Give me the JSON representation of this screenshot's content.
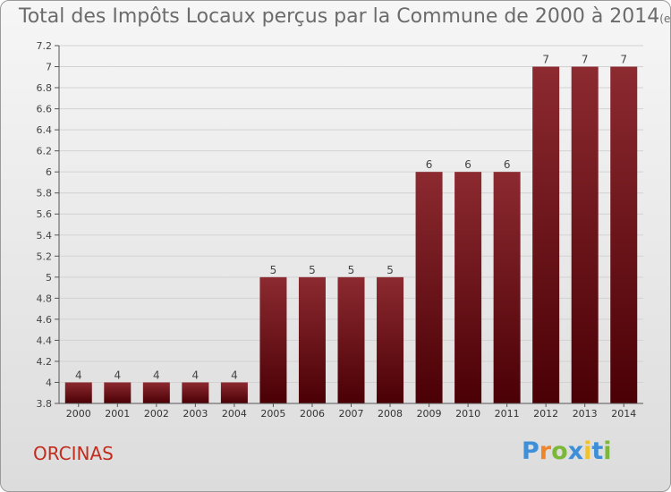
{
  "title": "Total des Impôts Locaux perçus par la Commune de 2000 à 2014",
  "subtitle": "(en milliers d'€)",
  "commune": "ORCINAS",
  "logo": {
    "text": "Proxiti",
    "letters": [
      "P",
      "r",
      "o",
      "x",
      "i",
      "t",
      "i"
    ],
    "colors": [
      "#3f8fd8",
      "#f0842a",
      "#7bb83a",
      "#3f8fd8",
      "#f0c22c",
      "#3f8fd8",
      "#7bb83a"
    ]
  },
  "colors": {
    "bar": "#6e0f14",
    "bar_light": "#8c2a30",
    "text": "#6b6b6b",
    "commune": "#c22c1d"
  },
  "chart_data": {
    "type": "bar",
    "categories": [
      "2000",
      "2001",
      "2002",
      "2003",
      "2004",
      "2005",
      "2006",
      "2007",
      "2008",
      "2009",
      "2010",
      "2011",
      "2012",
      "2013",
      "2014"
    ],
    "values": [
      4,
      4,
      4,
      4,
      4,
      5,
      5,
      5,
      5,
      6,
      6,
      6,
      7,
      7,
      7
    ],
    "labels": [
      "4",
      "4",
      "4",
      "4",
      "4",
      "5",
      "5",
      "5",
      "5",
      "6",
      "6",
      "6",
      "7",
      "7",
      "7"
    ],
    "ylim": [
      3.8,
      7.2
    ],
    "yticks": [
      "3.8",
      "4",
      "4.2",
      "4.4",
      "4.6",
      "4.8",
      "5",
      "5.2",
      "5.4",
      "5.6",
      "5.8",
      "6",
      "6.2",
      "6.4",
      "6.6",
      "6.8",
      "7",
      "7.2"
    ],
    "grid": true,
    "xlabel": "",
    "ylabel": ""
  }
}
